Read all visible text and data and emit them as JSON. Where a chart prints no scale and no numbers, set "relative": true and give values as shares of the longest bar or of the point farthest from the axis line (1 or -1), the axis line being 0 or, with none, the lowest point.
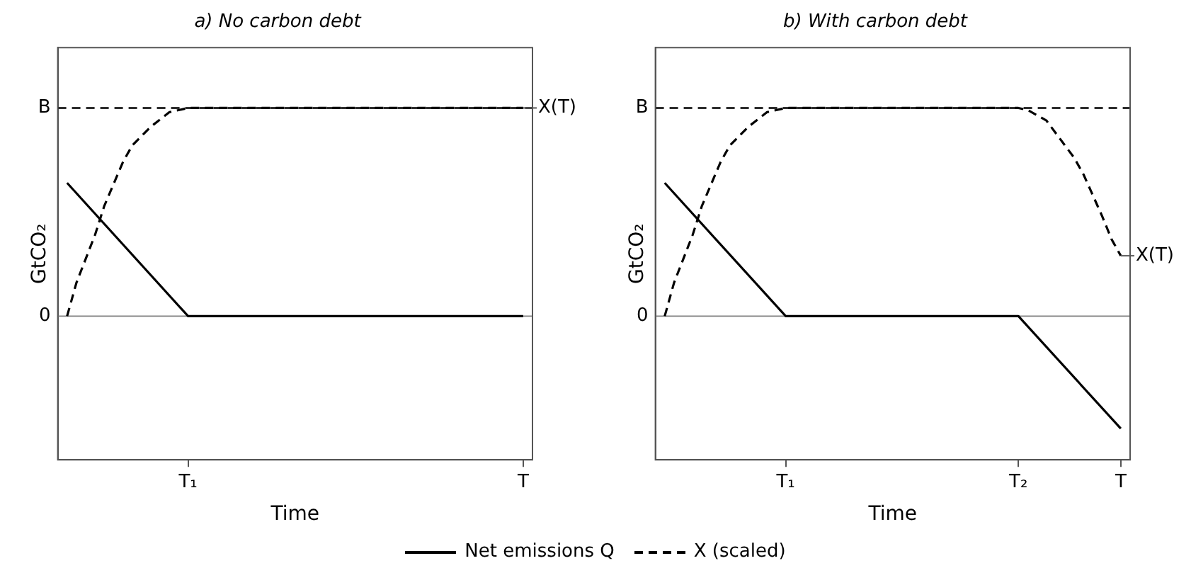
{
  "chart_data": [
    {
      "type": "line",
      "title": "a) No carbon debt",
      "xlabel": "Time",
      "ylabel": "GtCO₂",
      "relative": true,
      "grid": false,
      "legend": "bottom",
      "marker": "none",
      "categories": [
        null,
        null,
        null,
        null,
        null,
        null,
        null,
        null,
        null,
        null,
        null,
        null,
        null,
        null,
        "T₁",
        null,
        null,
        null,
        null,
        null,
        null,
        null,
        null,
        null,
        null,
        null,
        null,
        null,
        null,
        null,
        null,
        null,
        null,
        null,
        null,
        null,
        null,
        null,
        null,
        null,
        null,
        null,
        null,
        null,
        null,
        null,
        null,
        null,
        null,
        null,
        "T",
        null
      ],
      "series": [
        {
          "name": "Net emissions Q",
          "color": "#000000",
          "line_style": "solid",
          "values": [
            null,
            0.64,
            null,
            null,
            null,
            null,
            null,
            null,
            null,
            null,
            null,
            null,
            null,
            null,
            0,
            null,
            null,
            null,
            null,
            null,
            null,
            null,
            null,
            null,
            null,
            null,
            null,
            null,
            null,
            null,
            null,
            null,
            null,
            null,
            null,
            null,
            null,
            null,
            null,
            null,
            null,
            null,
            null,
            null,
            null,
            null,
            null,
            null,
            null,
            null,
            0,
            null
          ]
        },
        {
          "name": "X (scaled)",
          "color": "#000000",
          "line_style": "dashed",
          "values": [
            null,
            0,
            0.16,
            null,
            0.39,
            0.53,
            null,
            0.74,
            0.82,
            null,
            0.91,
            null,
            0.98,
            null,
            1,
            null,
            null,
            null,
            null,
            null,
            null,
            null,
            null,
            null,
            null,
            null,
            null,
            null,
            null,
            null,
            null,
            null,
            null,
            null,
            null,
            null,
            null,
            null,
            null,
            null,
            null,
            null,
            null,
            null,
            null,
            null,
            null,
            null,
            null,
            null,
            1,
            null
          ]
        }
      ],
      "ref_lines": [
        {
          "axis": "y",
          "value": 1,
          "label": "B",
          "color": "#000000",
          "line_style": "dashed"
        },
        {
          "axis": "y",
          "value": 0,
          "label": "0",
          "color": "#808080",
          "line_style": "solid"
        }
      ],
      "annotations": [
        {
          "text": "X(T)",
          "x": "T",
          "y": 1
        }
      ]
    },
    {
      "type": "line",
      "title": "b) With carbon debt",
      "xlabel": "Time",
      "ylabel": "GtCO₂",
      "relative": true,
      "grid": false,
      "marker": "none",
      "categories": [
        null,
        null,
        null,
        null,
        null,
        null,
        null,
        null,
        null,
        null,
        null,
        null,
        null,
        null,
        "T₁",
        null,
        null,
        null,
        null,
        null,
        null,
        null,
        null,
        null,
        null,
        null,
        null,
        null,
        null,
        null,
        null,
        null,
        null,
        null,
        null,
        null,
        null,
        null,
        null,
        "T₂",
        null,
        null,
        null,
        null,
        null,
        null,
        null,
        null,
        null,
        null,
        "T",
        null
      ],
      "series": [
        {
          "color": "#000000",
          "line_style": "solid",
          "values": [
            null,
            0.64,
            null,
            null,
            null,
            null,
            null,
            null,
            null,
            null,
            null,
            null,
            null,
            null,
            0,
            null,
            null,
            null,
            null,
            null,
            null,
            null,
            null,
            null,
            null,
            null,
            null,
            null,
            null,
            null,
            null,
            null,
            null,
            null,
            null,
            null,
            null,
            null,
            null,
            0,
            null,
            null,
            null,
            null,
            null,
            null,
            null,
            null,
            null,
            null,
            -0.54,
            null
          ]
        },
        {
          "color": "#000000",
          "line_style": "dashed",
          "values": [
            null,
            0,
            0.16,
            null,
            0.39,
            0.53,
            null,
            0.74,
            0.82,
            null,
            0.91,
            null,
            0.98,
            null,
            1,
            null,
            null,
            null,
            null,
            null,
            null,
            null,
            null,
            null,
            null,
            null,
            null,
            null,
            null,
            null,
            null,
            null,
            null,
            null,
            null,
            null,
            null,
            null,
            null,
            1,
            0.99,
            null,
            0.94,
            0.88,
            null,
            0.76,
            0.68,
            null,
            0.48,
            0.37,
            0.29,
            null
          ]
        }
      ],
      "ref_lines": [
        {
          "axis": "y",
          "value": 1,
          "label": "B",
          "color": "#000000",
          "line_style": "dashed"
        },
        {
          "axis": "y",
          "value": 0,
          "label": "0",
          "color": "#808080",
          "line_style": "solid"
        }
      ],
      "annotations": [
        {
          "text": "X(T)",
          "x": "T",
          "y": 0.29
        }
      ]
    }
  ]
}
